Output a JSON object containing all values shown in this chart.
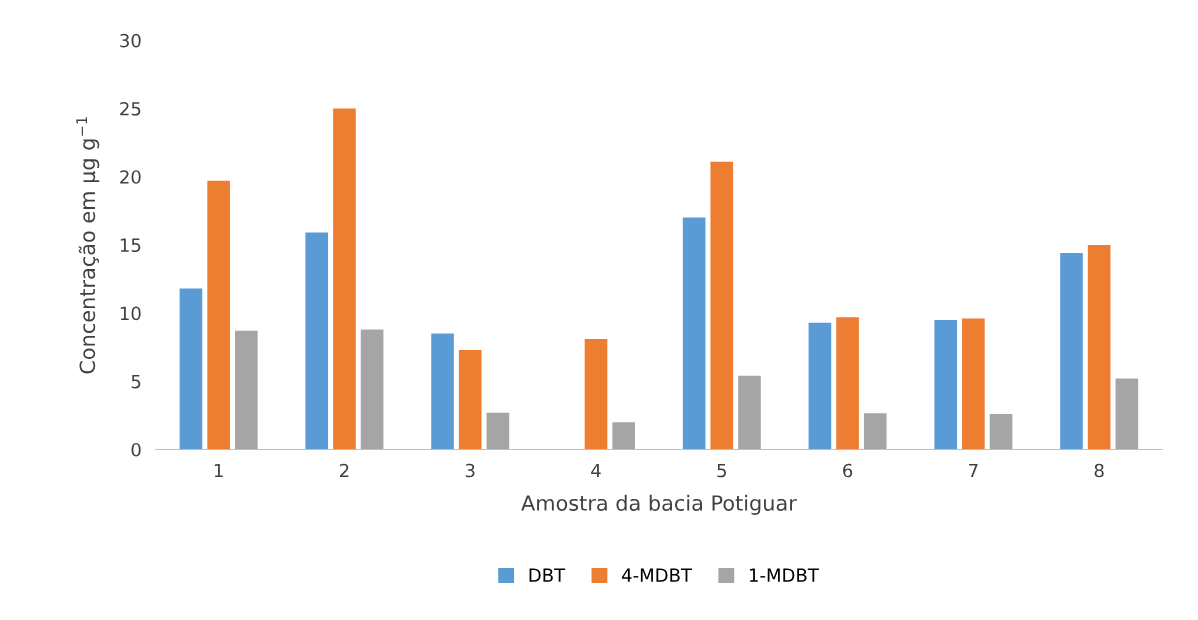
{
  "chart_data": {
    "type": "bar",
    "xlabel": "Amostra da bacia Potiguar",
    "ylabel": "Concentração em µg g$^{−1}$",
    "categories": [
      "1",
      "2",
      "3",
      "4",
      "5",
      "6",
      "7",
      "8"
    ],
    "series": [
      {
        "name": "DBT",
        "color": "#5b9bd5",
        "values": [
          11.8,
          15.9,
          8.5,
          0,
          17.0,
          9.3,
          9.5,
          14.4
        ]
      },
      {
        "name": "4-MDBT",
        "color": "#ed7d31",
        "values": [
          19.7,
          25.0,
          7.3,
          8.1,
          21.1,
          9.7,
          9.6,
          15.0
        ]
      },
      {
        "name": "1-MDBT",
        "color": "#a5a5a5",
        "values": [
          8.7,
          8.8,
          2.7,
          2.0,
          5.4,
          2.65,
          2.6,
          5.2
        ]
      }
    ],
    "ylim": [
      0,
      30
    ],
    "yticks": [
      0,
      5,
      10,
      15,
      20,
      25,
      30
    ],
    "grid": false,
    "legend": "bottom"
  }
}
